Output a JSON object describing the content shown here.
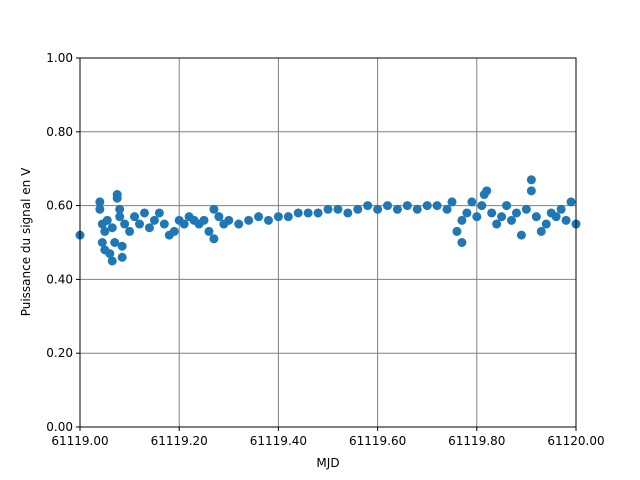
{
  "chart_data": {
    "type": "scatter",
    "x_label": "MJD",
    "y_label": "Puissance du signal en V",
    "xlim": [
      61119,
      61120
    ],
    "ylim": [
      0,
      1
    ],
    "xticks": [
      {
        "value": 61119,
        "label": "61119.00"
      },
      {
        "value": 61119.2,
        "label": "61119.20"
      },
      {
        "value": 61119.4,
        "label": "61119.40"
      },
      {
        "value": 61119.6,
        "label": "61119.60"
      },
      {
        "value": 61119.8,
        "label": "61119.80"
      },
      {
        "value": 61120,
        "label": "61120.00"
      }
    ],
    "yticks": [
      {
        "value": 0,
        "label": "0.00"
      },
      {
        "value": 0.2,
        "label": "0.20"
      },
      {
        "value": 0.4,
        "label": "0.40"
      },
      {
        "value": 0.6,
        "label": "0.60"
      },
      {
        "value": 0.8,
        "label": "0.80"
      },
      {
        "value": 1,
        "label": "1.00"
      }
    ],
    "grid": true,
    "color": "#1f77b4",
    "x": [
      61119.0,
      61119.04,
      61119.04,
      61119.045,
      61119.045,
      61119.05,
      61119.05,
      61119.055,
      61119.06,
      61119.065,
      61119.065,
      61119.07,
      61119.075,
      61119.075,
      61119.08,
      61119.08,
      61119.085,
      61119.085,
      61119.09,
      61119.1,
      61119.11,
      61119.12,
      61119.13,
      61119.14,
      61119.15,
      61119.16,
      61119.17,
      61119.18,
      61119.19,
      61119.2,
      61119.21,
      61119.22,
      61119.23,
      61119.24,
      61119.25,
      61119.26,
      61119.27,
      61119.27,
      61119.28,
      61119.29,
      61119.3,
      61119.32,
      61119.34,
      61119.36,
      61119.38,
      61119.4,
      61119.42,
      61119.44,
      61119.46,
      61119.48,
      61119.5,
      61119.52,
      61119.54,
      61119.56,
      61119.58,
      61119.6,
      61119.62,
      61119.64,
      61119.66,
      61119.68,
      61119.7,
      61119.72,
      61119.74,
      61119.75,
      61119.76,
      61119.77,
      61119.77,
      61119.78,
      61119.79,
      61119.8,
      61119.81,
      61119.815,
      61119.82,
      61119.83,
      61119.84,
      61119.85,
      61119.86,
      61119.87,
      61119.88,
      61119.89,
      61119.9,
      61119.91,
      61119.91,
      61119.92,
      61119.93,
      61119.94,
      61119.95,
      61119.96,
      61119.97,
      61119.98,
      61119.99,
      61120.0
    ],
    "values": [
      0.52,
      0.61,
      0.59,
      0.55,
      0.5,
      0.53,
      0.48,
      0.56,
      0.47,
      0.45,
      0.54,
      0.5,
      0.63,
      0.62,
      0.59,
      0.57,
      0.46,
      0.49,
      0.55,
      0.53,
      0.57,
      0.55,
      0.58,
      0.54,
      0.56,
      0.58,
      0.55,
      0.52,
      0.53,
      0.56,
      0.55,
      0.57,
      0.56,
      0.55,
      0.56,
      0.53,
      0.51,
      0.59,
      0.57,
      0.55,
      0.56,
      0.55,
      0.56,
      0.57,
      0.56,
      0.57,
      0.57,
      0.58,
      0.58,
      0.58,
      0.59,
      0.59,
      0.58,
      0.59,
      0.6,
      0.59,
      0.6,
      0.59,
      0.6,
      0.59,
      0.6,
      0.6,
      0.59,
      0.61,
      0.53,
      0.5,
      0.56,
      0.58,
      0.61,
      0.57,
      0.6,
      0.63,
      0.64,
      0.58,
      0.55,
      0.57,
      0.6,
      0.56,
      0.58,
      0.52,
      0.59,
      0.67,
      0.64,
      0.57,
      0.53,
      0.55,
      0.58,
      0.57,
      0.59,
      0.56,
      0.61,
      0.55
    ]
  }
}
